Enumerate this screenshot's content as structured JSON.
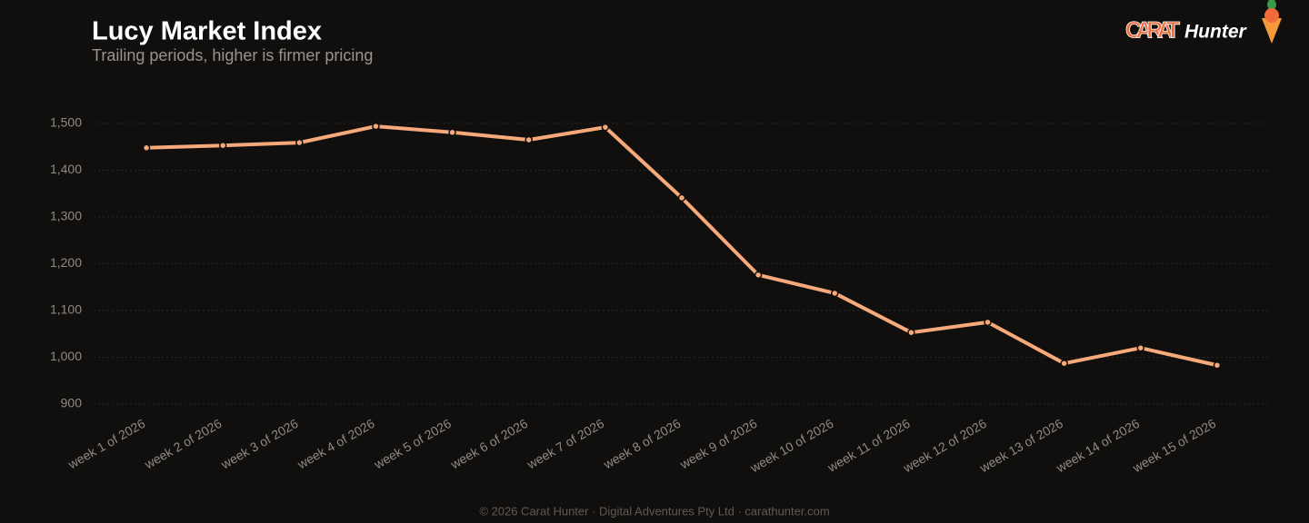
{
  "brand": {
    "word1": "CARAT",
    "word2": "Hunter"
  },
  "footer": "© 2026 Carat Hunter · Digital Adventures Pty Ltd · carathunter.com",
  "chart_data": {
    "type": "line",
    "title": "Lucy Market Index",
    "subtitle": "Trailing periods, higher is firmer pricing",
    "categories": [
      "week 1 of 2026",
      "week 2 of 2026",
      "week 3 of 2026",
      "week 4 of 2026",
      "week 5 of 2026",
      "week 6 of 2026",
      "week 7 of 2026",
      "week 8 of 2026",
      "week 9 of 2026",
      "week 10 of 2026",
      "week 11 of 2026",
      "week 12 of 2026",
      "week 13 of 2026",
      "week 14 of 2026",
      "week 15 of 2026"
    ],
    "values": [
      1448,
      1453,
      1459,
      1494,
      1481,
      1465,
      1492,
      1341,
      1176,
      1137,
      1053,
      1075,
      987,
      1020,
      983
    ],
    "color": "#f6a97a",
    "ylim": [
      900,
      1500
    ],
    "yticks": [
      900,
      {
        "value": 1000,
        "label": "1,000"
      },
      {
        "value": 1100,
        "label": "1,100"
      },
      {
        "value": 1200,
        "label": "1,200"
      },
      {
        "value": 1300,
        "label": "1,300"
      },
      {
        "value": 1400,
        "label": "1,400"
      },
      {
        "value": 1500,
        "label": "1,500"
      }
    ],
    "grid": true
  }
}
